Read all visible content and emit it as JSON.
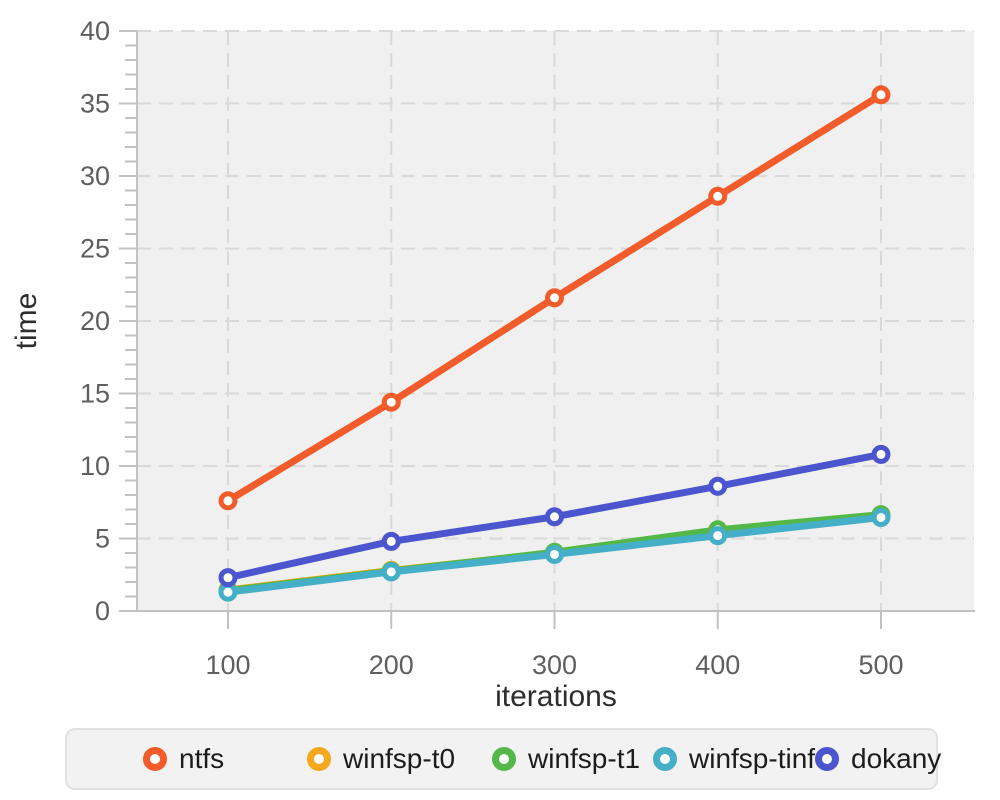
{
  "chart_data": {
    "type": "line",
    "title": "",
    "xlabel": "iterations",
    "ylabel": "time",
    "x": [
      100,
      200,
      300,
      400,
      500
    ],
    "xticks": [
      100,
      200,
      300,
      400,
      500
    ],
    "yticks": [
      0,
      5,
      10,
      15,
      20,
      25,
      30,
      35,
      40
    ],
    "ylim": [
      0,
      40
    ],
    "grid": true,
    "legend_position": "bottom",
    "series": [
      {
        "name": "ntfs",
        "color": "#F25C2B",
        "values": [
          7.6,
          14.4,
          21.6,
          28.6,
          35.6
        ]
      },
      {
        "name": "winfsp-t0",
        "color": "#F5A71D",
        "values": [
          1.45,
          2.8,
          4.0,
          5.3,
          6.5
        ]
      },
      {
        "name": "winfsp-t1",
        "color": "#54B849",
        "values": [
          1.4,
          2.75,
          4.05,
          5.6,
          6.65
        ]
      },
      {
        "name": "winfsp-tinf",
        "color": "#45AFC8",
        "values": [
          1.3,
          2.7,
          3.9,
          5.2,
          6.45
        ]
      },
      {
        "name": "dokany",
        "color": "#4A55CE",
        "values": [
          2.3,
          4.8,
          6.5,
          8.6,
          10.8
        ]
      }
    ],
    "style": {
      "plot_bg": "#f0f0f0",
      "grid_color": "#d9d9d9",
      "axis_color": "#c2c2c2",
      "marker_fill": "#ffffff"
    }
  }
}
